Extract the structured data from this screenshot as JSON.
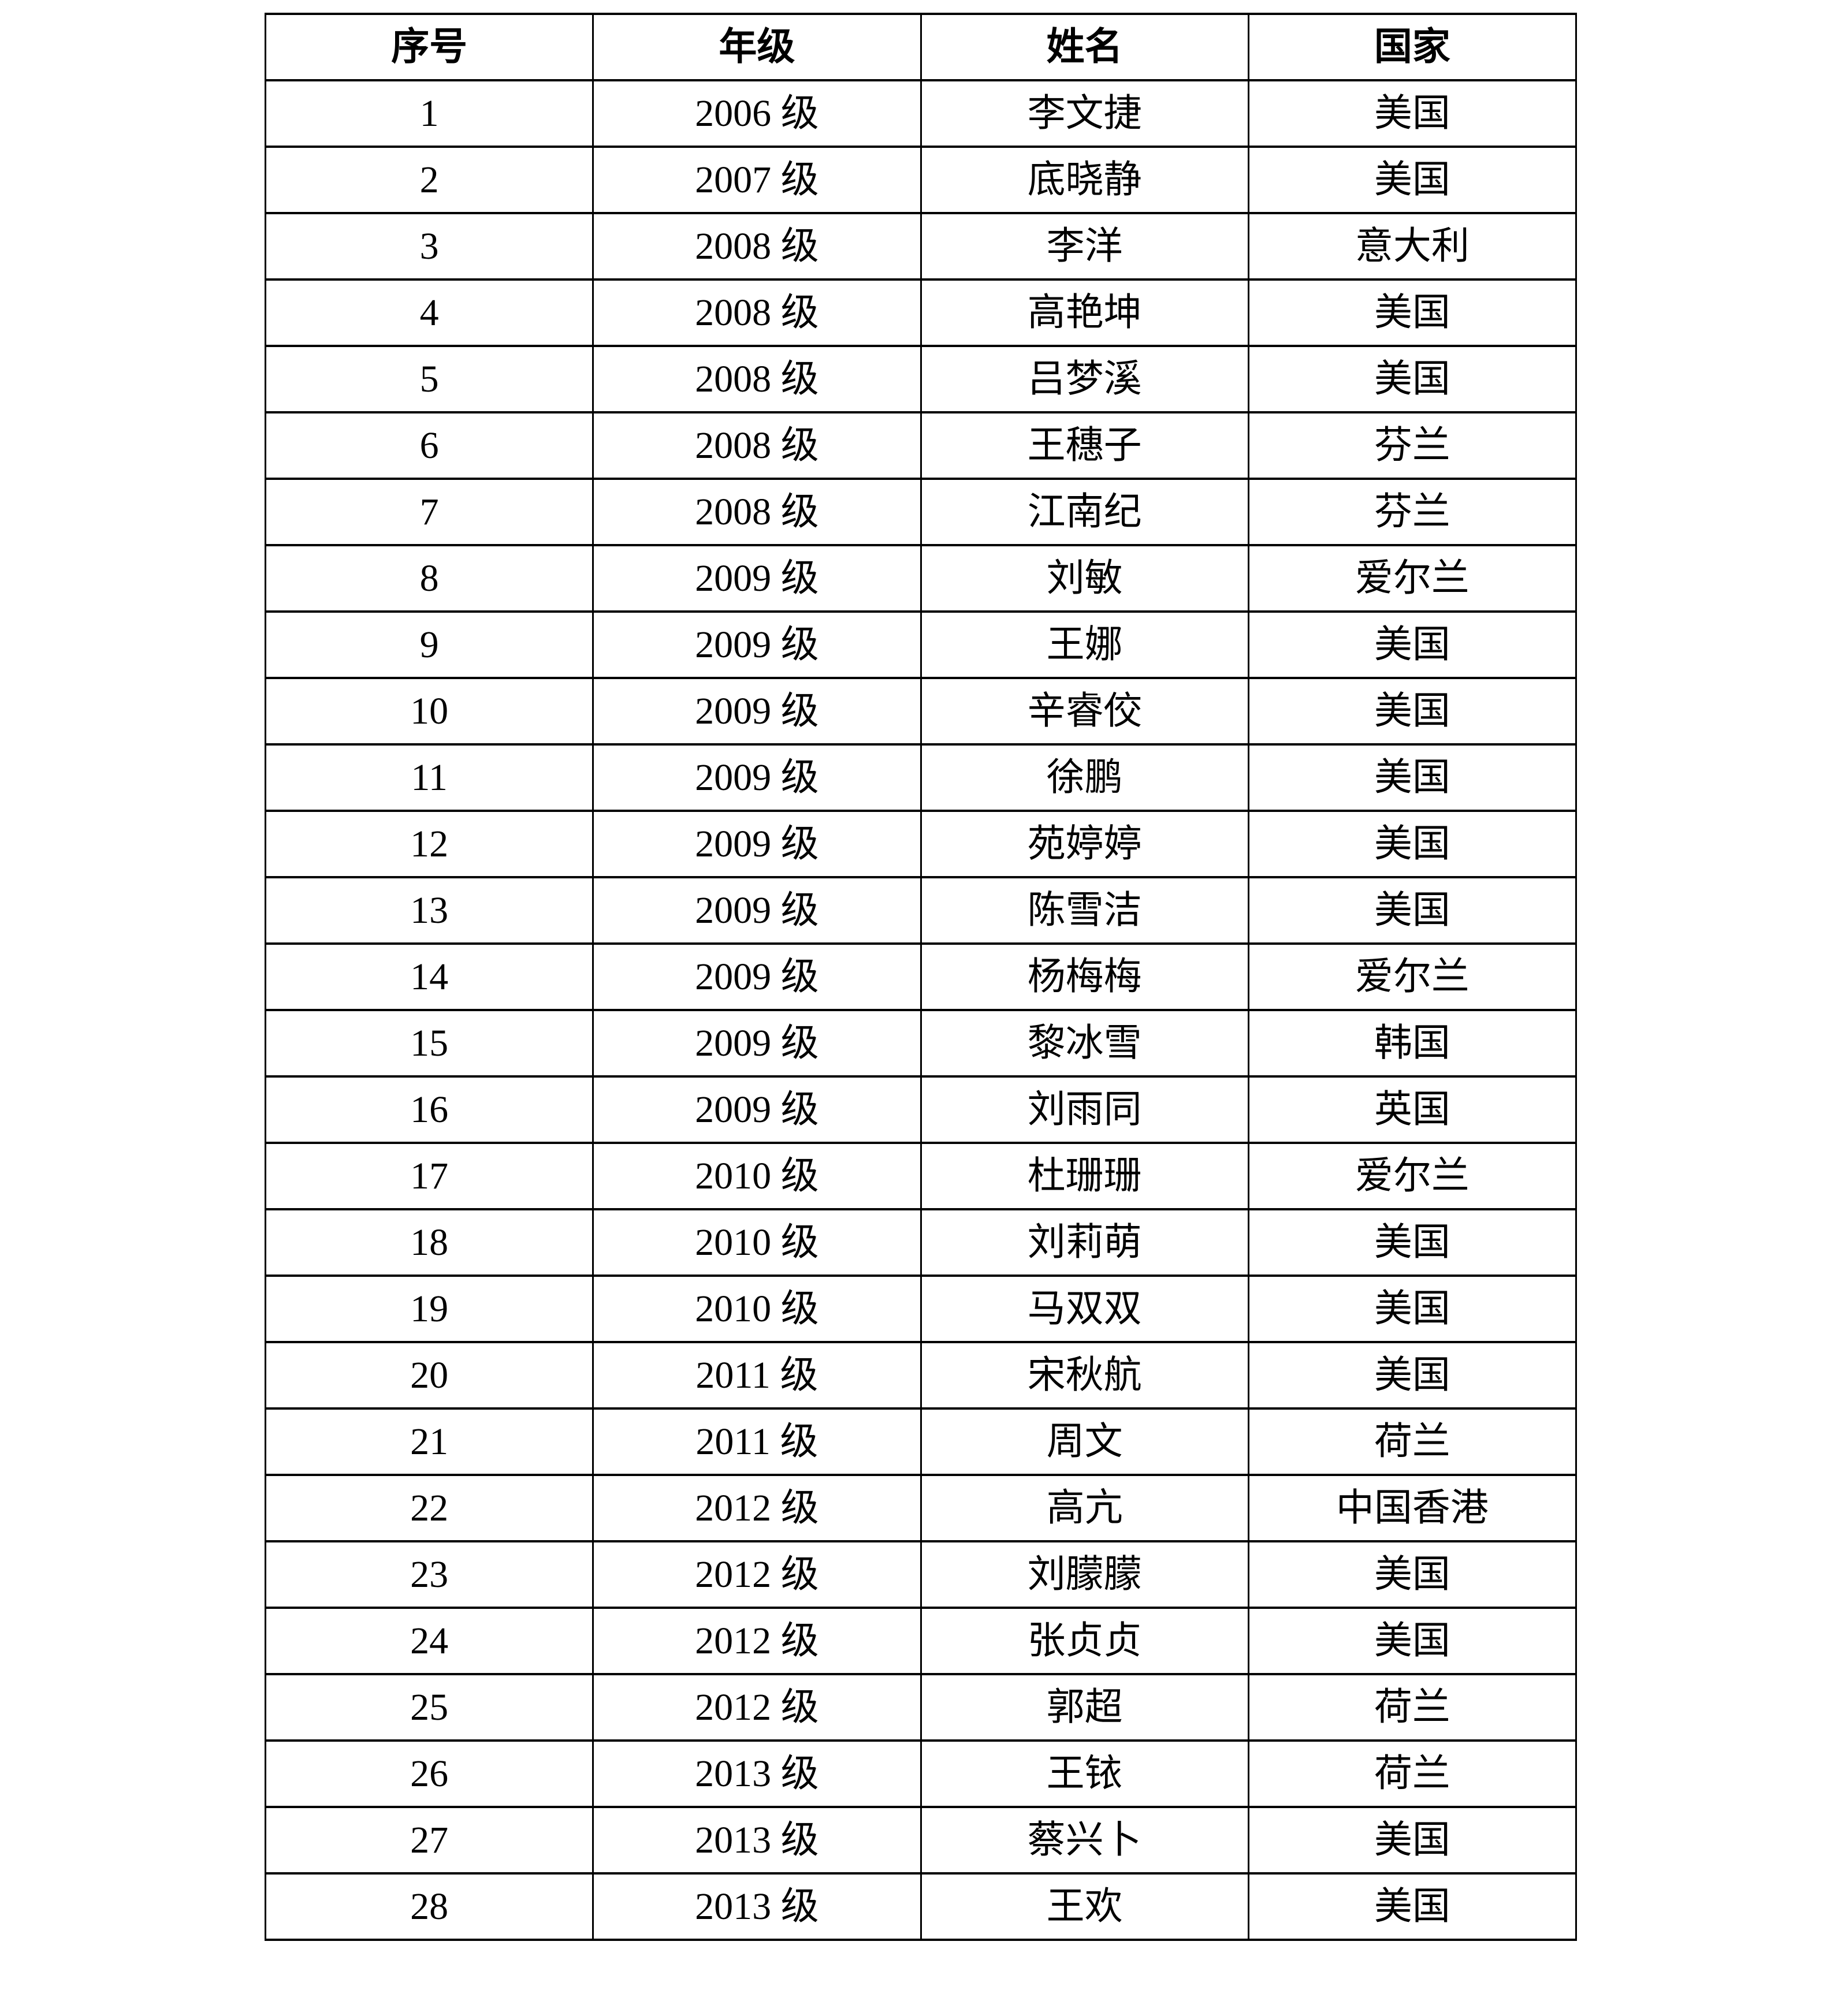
{
  "page": {
    "background_color": "#ffffff",
    "text_color": "#000000",
    "border_color": "#000000"
  },
  "table": {
    "headers": [
      "序号",
      "年级",
      "姓名",
      "国家"
    ],
    "rows": [
      [
        "1",
        "2006 级",
        "李文捷",
        "美国"
      ],
      [
        "2",
        "2007 级",
        "底晓静",
        "美国"
      ],
      [
        "3",
        "2008 级",
        "李洋",
        "意大利"
      ],
      [
        "4",
        "2008 级",
        "高艳坤",
        "美国"
      ],
      [
        "5",
        "2008 级",
        "吕梦溪",
        "美国"
      ],
      [
        "6",
        "2008 级",
        "王穗子",
        "芬兰"
      ],
      [
        "7",
        "2008 级",
        "江南纪",
        "芬兰"
      ],
      [
        "8",
        "2009 级",
        "刘敏",
        "爱尔兰"
      ],
      [
        "9",
        "2009 级",
        "王娜",
        "美国"
      ],
      [
        "10",
        "2009 级",
        "辛睿佼",
        "美国"
      ],
      [
        "11",
        "2009 级",
        "徐鹏",
        "美国"
      ],
      [
        "12",
        "2009 级",
        "苑婷婷",
        "美国"
      ],
      [
        "13",
        "2009 级",
        "陈雪洁",
        "美国"
      ],
      [
        "14",
        "2009 级",
        "杨梅梅",
        "爱尔兰"
      ],
      [
        "15",
        "2009 级",
        "黎冰雪",
        "韩国"
      ],
      [
        "16",
        "2009 级",
        "刘雨同",
        "英国"
      ],
      [
        "17",
        "2010 级",
        "杜珊珊",
        "爱尔兰"
      ],
      [
        "18",
        "2010 级",
        "刘莉萌",
        "美国"
      ],
      [
        "19",
        "2010 级",
        "马双双",
        "美国"
      ],
      [
        "20",
        "2011 级",
        "宋秋航",
        "美国"
      ],
      [
        "21",
        "2011 级",
        "周文",
        "荷兰"
      ],
      [
        "22",
        "2012 级",
        "高亢",
        "中国香港"
      ],
      [
        "23",
        "2012 级",
        "刘朦朦",
        "美国"
      ],
      [
        "24",
        "2012 级",
        "张贞贞",
        "美国"
      ],
      [
        "25",
        "2012 级",
        "郭超",
        "荷兰"
      ],
      [
        "26",
        "2013 级",
        "王铱",
        "荷兰"
      ],
      [
        "27",
        "2013 级",
        "蔡兴卜",
        "美国"
      ],
      [
        "28",
        "2013 级",
        "王欢",
        "美国"
      ]
    ]
  }
}
